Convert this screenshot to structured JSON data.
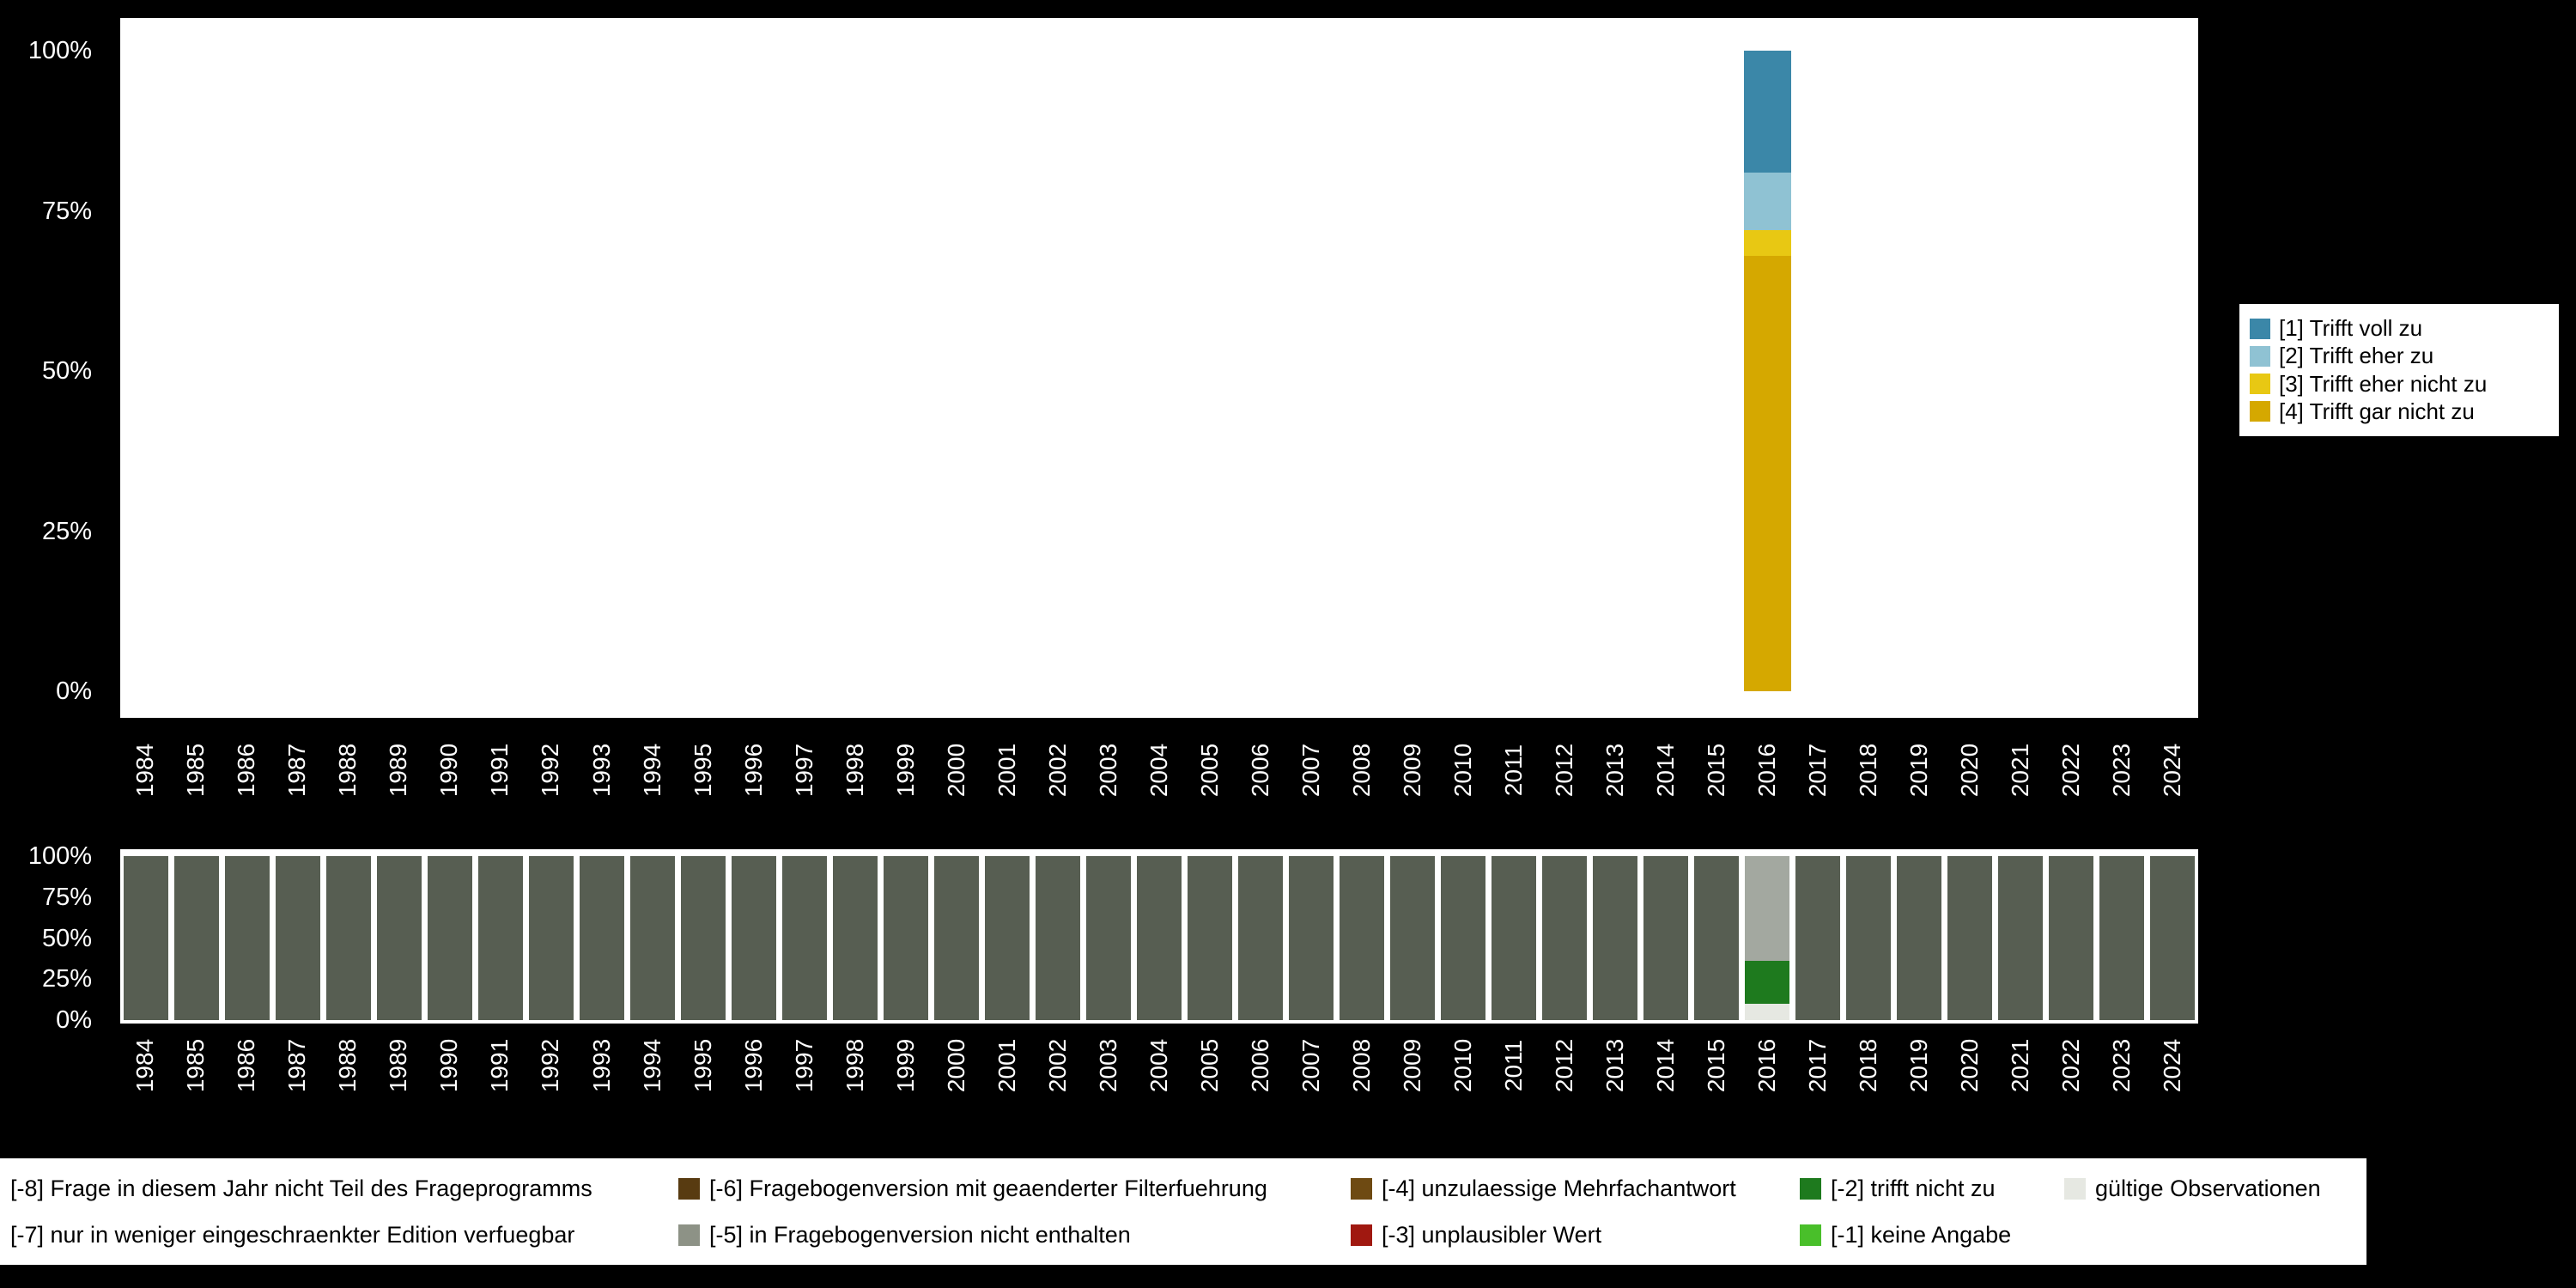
{
  "background_color": "#000000",
  "chart_data": [
    {
      "type": "bar",
      "stacked": true,
      "name": "values-distribution",
      "title": "",
      "xlabel": "",
      "ylabel": "",
      "grid": false,
      "ylim": [
        0,
        100
      ],
      "yticklabels": [
        "0%",
        "25%",
        "50%",
        "75%",
        "100%"
      ],
      "legend_position": "right",
      "categories": [
        "1984",
        "1985",
        "1986",
        "1987",
        "1988",
        "1989",
        "1990",
        "1991",
        "1992",
        "1993",
        "1994",
        "1995",
        "1996",
        "1997",
        "1998",
        "1999",
        "2000",
        "2001",
        "2002",
        "2003",
        "2004",
        "2005",
        "2006",
        "2007",
        "2008",
        "2009",
        "2010",
        "2011",
        "2012",
        "2013",
        "2014",
        "2015",
        "2016",
        "2017",
        "2018",
        "2019",
        "2020",
        "2021",
        "2022",
        "2023",
        "2024"
      ],
      "series": [
        {
          "name": "[1] Trifft voll zu",
          "color": "#3b87a8",
          "values": {
            "default": 0,
            "2016": 19
          }
        },
        {
          "name": "[2] Trifft eher zu",
          "color": "#8fc2d3",
          "values": {
            "default": 0,
            "2016": 9
          }
        },
        {
          "name": "[3] Trifft eher nicht zu",
          "color": "#e8c813",
          "values": {
            "default": 0,
            "2016": 4
          }
        },
        {
          "name": "[4] Trifft gar nicht zu",
          "color": "#d5a800",
          "values": {
            "default": 0,
            "2016": 68
          }
        }
      ],
      "stack_bottom_to_top": [
        "[4] Trifft gar nicht zu",
        "[3] Trifft eher nicht zu",
        "[2] Trifft eher zu",
        "[1] Trifft voll zu"
      ]
    },
    {
      "type": "bar",
      "stacked": true,
      "name": "missings-distribution",
      "title": "",
      "xlabel": "",
      "ylabel": "",
      "grid": false,
      "ylim": [
        0,
        100
      ],
      "yticklabels": [
        "0%",
        "25%",
        "50%",
        "75%",
        "100%"
      ],
      "categories": [
        "1984",
        "1985",
        "1986",
        "1987",
        "1988",
        "1989",
        "1990",
        "1991",
        "1992",
        "1993",
        "1994",
        "1995",
        "1996",
        "1997",
        "1998",
        "1999",
        "2000",
        "2001",
        "2002",
        "2003",
        "2004",
        "2005",
        "2006",
        "2007",
        "2008",
        "2009",
        "2010",
        "2011",
        "2012",
        "2013",
        "2014",
        "2015",
        "2016",
        "2017",
        "2018",
        "2019",
        "2020",
        "2021",
        "2022",
        "2023",
        "2024"
      ],
      "series": [
        {
          "name": "[-8] Frage in diesem Jahr nicht Teil des Frageprogramms",
          "color": "#575e52",
          "values": {
            "default": 100,
            "2016": 0
          }
        },
        {
          "name": "[-7] nur in weniger eingeschraenkter Edition verfuegbar",
          "color": "#a3a8a0",
          "values": {
            "default": 0,
            "2016": 64
          }
        },
        {
          "name": "[-2] trifft nicht zu",
          "color": "#1e7a1e",
          "values": {
            "default": 0,
            "2016": 26
          }
        },
        {
          "name": "gültige Observationen",
          "color": "#e6e8e2",
          "values": {
            "default": 0,
            "2016": 10
          }
        }
      ],
      "stack_bottom_to_top": [
        "gültige Observationen",
        "[-2] trifft nicht zu",
        "[-7] nur in weniger eingeschraenkter Edition verfuegbar",
        "[-8] Frage in diesem Jahr nicht Teil des Frageprogramms"
      ]
    }
  ],
  "missing_legend": {
    "rows": [
      [
        {
          "label": "[-8] Frage in diesem Jahr nicht Teil des Frageprogramms",
          "color": "#575e52",
          "swatch_visible": false
        },
        {
          "label": "[-6] Fragebogenversion mit geaenderter Filterfuehrung",
          "color": "#583b11",
          "swatch_visible": true
        },
        {
          "label": "[-4] unzulaessige Mehrfachantwort",
          "color": "#6e4a12",
          "swatch_visible": true
        },
        {
          "label": "[-2] trifft nicht zu",
          "color": "#1e7a1e",
          "swatch_visible": true
        },
        {
          "label": "gültige Observationen",
          "color": "#e6e8e2",
          "swatch_visible": true
        }
      ],
      [
        {
          "label": "[-7] nur in weniger eingeschraenkter Edition verfuegbar",
          "color": "#a3a8a0",
          "swatch_visible": false
        },
        {
          "label": "[-5] in Fragebogenversion nicht enthalten",
          "color": "#8d9286",
          "swatch_visible": true
        },
        {
          "label": "[-3] unplausibler Wert",
          "color": "#a01810",
          "swatch_visible": true
        },
        {
          "label": "[-1] keine Angabe",
          "color": "#49bf2a",
          "swatch_visible": true
        }
      ]
    ]
  }
}
